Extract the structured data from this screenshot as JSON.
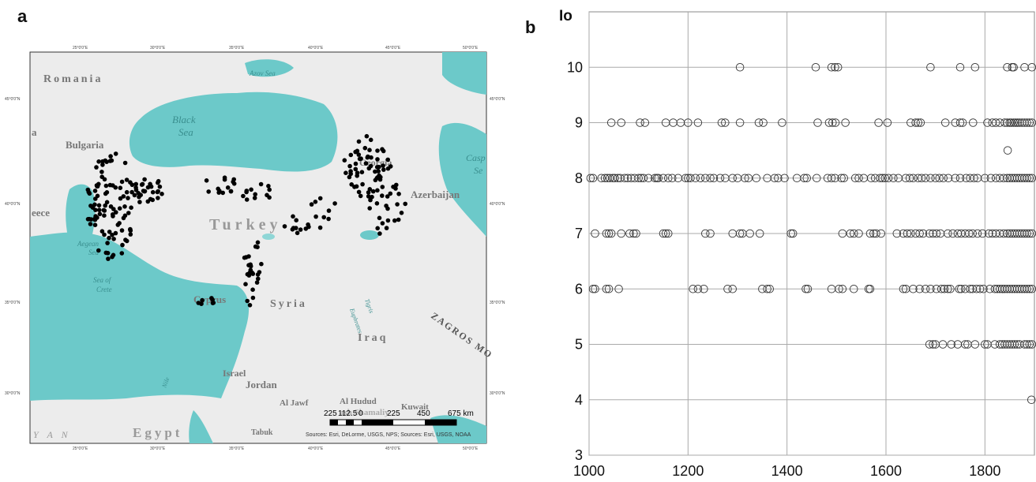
{
  "panels": {
    "a_letter": "a",
    "b_letter": "b"
  },
  "map": {
    "labels": {
      "romania": "Romania",
      "azov_sea": "Azov Sea",
      "black_sea_1": "Black",
      "black_sea_2": "Sea",
      "bulgaria": "Bulgaria",
      "greece_partial": "eece",
      "a_partial": "a",
      "turkey": "Turkey",
      "aegean_sea_1": "Aegean",
      "aegean_sea_2": "Sea",
      "sea_of_crete_1": "Sea of",
      "sea_of_crete_2": "Crete",
      "cyprus": "Cyprus",
      "syria": "Syria",
      "iraq": "Iraq",
      "tigris": "Tigris",
      "euphrates": "Euphrates",
      "zagros": "ZAGROS MO",
      "georgia": "Georgia",
      "azerbaijan": "Azerbaijan",
      "caspian_1": "Casp",
      "caspian_2": "Se",
      "israel": "Israel",
      "jordan": "Jordan",
      "al_jawf": "Al Jawf",
      "al_hudud": "Al Hudud",
      "ash_shamaliy": "ash Shamaliy",
      "kuwait": "Kuwait",
      "egypt": "Egypt",
      "tabuk": "Tabuk",
      "y_a_n": "Y A N",
      "nile": "Nile"
    },
    "lon_ticks": [
      "25°0'0\"E",
      "30°0'0\"E",
      "35°0'0\"E",
      "40°0'0\"E",
      "45°0'0\"E",
      "50°0'0\"E"
    ],
    "lat_ticks": [
      "45°0'0\"N",
      "40°0'0\"N",
      "35°0'0\"N",
      "30°0'0\"N"
    ],
    "scale_labels": [
      "225",
      "112.5",
      "0",
      "225",
      "450",
      "675 km"
    ],
    "sources": "Sources: Esri, DeLorme, USGS, NPS; Sources: Esri, USGS, NOAA",
    "colors": {
      "sea": "#6cc9c9",
      "land": "#eeeeee",
      "dot": "#000000"
    }
  },
  "chart_data": {
    "type": "scatter",
    "title": "",
    "xlabel": "",
    "ylabel": "Io",
    "xlim": [
      1000,
      1900
    ],
    "ylim": [
      3,
      11
    ],
    "xticks": [
      1000,
      1200,
      1400,
      1600,
      1800
    ],
    "yticks": [
      3,
      4,
      5,
      6,
      7,
      8,
      9,
      10
    ],
    "grid": true,
    "marker": "open-circle",
    "series": [
      {
        "points": [
          [
            1305,
            10
          ],
          [
            1458,
            10
          ],
          [
            1490,
            10
          ],
          [
            1497,
            10
          ],
          [
            1503,
            10
          ],
          [
            1690,
            10
          ],
          [
            1750,
            10
          ],
          [
            1780,
            10
          ],
          [
            1845,
            10
          ],
          [
            1855,
            10
          ],
          [
            1858,
            10
          ],
          [
            1880,
            10
          ],
          [
            1895,
            10
          ],
          [
            1045,
            9
          ],
          [
            1065,
            9
          ],
          [
            1103,
            9
          ],
          [
            1113,
            9
          ],
          [
            1155,
            9
          ],
          [
            1170,
            9
          ],
          [
            1185,
            9
          ],
          [
            1200,
            9
          ],
          [
            1220,
            9
          ],
          [
            1268,
            9
          ],
          [
            1275,
            9
          ],
          [
            1305,
            9
          ],
          [
            1343,
            9
          ],
          [
            1352,
            9
          ],
          [
            1390,
            9
          ],
          [
            1462,
            9
          ],
          [
            1485,
            9
          ],
          [
            1492,
            9
          ],
          [
            1498,
            9
          ],
          [
            1518,
            9
          ],
          [
            1585,
            9
          ],
          [
            1603,
            9
          ],
          [
            1650,
            9
          ],
          [
            1660,
            9
          ],
          [
            1665,
            9
          ],
          [
            1670,
            9
          ],
          [
            1720,
            9
          ],
          [
            1740,
            9
          ],
          [
            1750,
            9
          ],
          [
            1755,
            9
          ],
          [
            1776,
            9
          ],
          [
            1805,
            9
          ],
          [
            1815,
            9
          ],
          [
            1822,
            9
          ],
          [
            1830,
            9
          ],
          [
            1840,
            9
          ],
          [
            1845,
            9
          ],
          [
            1850,
            9
          ],
          [
            1853,
            9
          ],
          [
            1858,
            9
          ],
          [
            1862,
            9
          ],
          [
            1866,
            9
          ],
          [
            1870,
            9
          ],
          [
            1875,
            9
          ],
          [
            1880,
            9
          ],
          [
            1885,
            9
          ],
          [
            1890,
            9
          ],
          [
            1895,
            9
          ],
          [
            1846,
            8.5
          ],
          [
            1003,
            8
          ],
          [
            1008,
            8
          ],
          [
            1025,
            8
          ],
          [
            1032,
            8
          ],
          [
            1037,
            8
          ],
          [
            1042,
            8
          ],
          [
            1048,
            8
          ],
          [
            1052,
            8
          ],
          [
            1058,
            8
          ],
          [
            1063,
            8
          ],
          [
            1072,
            8
          ],
          [
            1078,
            8
          ],
          [
            1085,
            8
          ],
          [
            1092,
            8
          ],
          [
            1100,
            8
          ],
          [
            1105,
            8
          ],
          [
            1110,
            8
          ],
          [
            1120,
            8
          ],
          [
            1133,
            8
          ],
          [
            1137,
            8
          ],
          [
            1140,
            8
          ],
          [
            1150,
            8
          ],
          [
            1160,
            8
          ],
          [
            1168,
            8
          ],
          [
            1180,
            8
          ],
          [
            1195,
            8
          ],
          [
            1200,
            8
          ],
          [
            1205,
            8
          ],
          [
            1215,
            8
          ],
          [
            1225,
            8
          ],
          [
            1235,
            8
          ],
          [
            1245,
            8
          ],
          [
            1252,
            8
          ],
          [
            1265,
            8
          ],
          [
            1275,
            8
          ],
          [
            1290,
            8
          ],
          [
            1300,
            8
          ],
          [
            1315,
            8
          ],
          [
            1322,
            8
          ],
          [
            1338,
            8
          ],
          [
            1360,
            8
          ],
          [
            1375,
            8
          ],
          [
            1382,
            8
          ],
          [
            1395,
            8
          ],
          [
            1420,
            8
          ],
          [
            1435,
            8
          ],
          [
            1440,
            8
          ],
          [
            1460,
            8
          ],
          [
            1482,
            8
          ],
          [
            1490,
            8
          ],
          [
            1497,
            8
          ],
          [
            1510,
            8
          ],
          [
            1515,
            8
          ],
          [
            1538,
            8
          ],
          [
            1545,
            8
          ],
          [
            1555,
            8
          ],
          [
            1570,
            8
          ],
          [
            1578,
            8
          ],
          [
            1588,
            8
          ],
          [
            1593,
            8
          ],
          [
            1598,
            8
          ],
          [
            1605,
            8
          ],
          [
            1615,
            8
          ],
          [
            1625,
            8
          ],
          [
            1640,
            8
          ],
          [
            1648,
            8
          ],
          [
            1655,
            8
          ],
          [
            1665,
            8
          ],
          [
            1672,
            8
          ],
          [
            1680,
            8
          ],
          [
            1690,
            8
          ],
          [
            1700,
            8
          ],
          [
            1708,
            8
          ],
          [
            1716,
            8
          ],
          [
            1726,
            8
          ],
          [
            1740,
            8
          ],
          [
            1750,
            8
          ],
          [
            1762,
            8
          ],
          [
            1770,
            8
          ],
          [
            1778,
            8
          ],
          [
            1785,
            8
          ],
          [
            1800,
            8
          ],
          [
            1812,
            8
          ],
          [
            1822,
            8
          ],
          [
            1830,
            8
          ],
          [
            1838,
            8
          ],
          [
            1845,
            8
          ],
          [
            1850,
            8
          ],
          [
            1855,
            8
          ],
          [
            1860,
            8
          ],
          [
            1865,
            8
          ],
          [
            1870,
            8
          ],
          [
            1875,
            8
          ],
          [
            1880,
            8
          ],
          [
            1885,
            8
          ],
          [
            1890,
            8
          ],
          [
            1895,
            8
          ],
          [
            1012,
            7
          ],
          [
            1035,
            7
          ],
          [
            1040,
            7
          ],
          [
            1045,
            7
          ],
          [
            1065,
            7
          ],
          [
            1082,
            7
          ],
          [
            1090,
            7
          ],
          [
            1095,
            7
          ],
          [
            1150,
            7
          ],
          [
            1155,
            7
          ],
          [
            1160,
            7
          ],
          [
            1235,
            7
          ],
          [
            1245,
            7
          ],
          [
            1290,
            7
          ],
          [
            1305,
            7
          ],
          [
            1310,
            7
          ],
          [
            1325,
            7
          ],
          [
            1345,
            7
          ],
          [
            1408,
            7
          ],
          [
            1412,
            7
          ],
          [
            1512,
            7
          ],
          [
            1528,
            7
          ],
          [
            1535,
            7
          ],
          [
            1545,
            7
          ],
          [
            1568,
            7
          ],
          [
            1575,
            7
          ],
          [
            1580,
            7
          ],
          [
            1590,
            7
          ],
          [
            1622,
            7
          ],
          [
            1635,
            7
          ],
          [
            1643,
            7
          ],
          [
            1650,
            7
          ],
          [
            1660,
            7
          ],
          [
            1668,
            7
          ],
          [
            1675,
            7
          ],
          [
            1688,
            7
          ],
          [
            1695,
            7
          ],
          [
            1702,
            7
          ],
          [
            1710,
            7
          ],
          [
            1725,
            7
          ],
          [
            1735,
            7
          ],
          [
            1745,
            7
          ],
          [
            1752,
            7
          ],
          [
            1760,
            7
          ],
          [
            1768,
            7
          ],
          [
            1775,
            7
          ],
          [
            1785,
            7
          ],
          [
            1795,
            7
          ],
          [
            1808,
            7
          ],
          [
            1815,
            7
          ],
          [
            1822,
            7
          ],
          [
            1830,
            7
          ],
          [
            1838,
            7
          ],
          [
            1845,
            7
          ],
          [
            1850,
            7
          ],
          [
            1855,
            7
          ],
          [
            1860,
            7
          ],
          [
            1865,
            7
          ],
          [
            1870,
            7
          ],
          [
            1875,
            7
          ],
          [
            1880,
            7
          ],
          [
            1885,
            7
          ],
          [
            1890,
            7
          ],
          [
            1895,
            7
          ],
          [
            1008,
            6
          ],
          [
            1012,
            6
          ],
          [
            1035,
            6
          ],
          [
            1040,
            6
          ],
          [
            1060,
            6
          ],
          [
            1210,
            6
          ],
          [
            1220,
            6
          ],
          [
            1232,
            6
          ],
          [
            1280,
            6
          ],
          [
            1290,
            6
          ],
          [
            1350,
            6
          ],
          [
            1360,
            6
          ],
          [
            1365,
            6
          ],
          [
            1438,
            6
          ],
          [
            1442,
            6
          ],
          [
            1490,
            6
          ],
          [
            1505,
            6
          ],
          [
            1512,
            6
          ],
          [
            1535,
            6
          ],
          [
            1565,
            6
          ],
          [
            1568,
            6
          ],
          [
            1635,
            6
          ],
          [
            1640,
            6
          ],
          [
            1655,
            6
          ],
          [
            1668,
            6
          ],
          [
            1680,
            6
          ],
          [
            1690,
            6
          ],
          [
            1702,
            6
          ],
          [
            1712,
            6
          ],
          [
            1718,
            6
          ],
          [
            1725,
            6
          ],
          [
            1730,
            6
          ],
          [
            1748,
            6
          ],
          [
            1752,
            6
          ],
          [
            1760,
            6
          ],
          [
            1770,
            6
          ],
          [
            1775,
            6
          ],
          [
            1783,
            6
          ],
          [
            1790,
            6
          ],
          [
            1797,
            6
          ],
          [
            1810,
            6
          ],
          [
            1820,
            6
          ],
          [
            1825,
            6
          ],
          [
            1830,
            6
          ],
          [
            1835,
            6
          ],
          [
            1840,
            6
          ],
          [
            1845,
            6
          ],
          [
            1850,
            6
          ],
          [
            1855,
            6
          ],
          [
            1860,
            6
          ],
          [
            1865,
            6
          ],
          [
            1870,
            6
          ],
          [
            1875,
            6
          ],
          [
            1880,
            6
          ],
          [
            1885,
            6
          ],
          [
            1890,
            6
          ],
          [
            1895,
            6
          ],
          [
            1688,
            5
          ],
          [
            1695,
            5
          ],
          [
            1700,
            5
          ],
          [
            1715,
            5
          ],
          [
            1732,
            5
          ],
          [
            1745,
            5
          ],
          [
            1760,
            5
          ],
          [
            1765,
            5
          ],
          [
            1780,
            5
          ],
          [
            1800,
            5
          ],
          [
            1805,
            5
          ],
          [
            1820,
            5
          ],
          [
            1830,
            5
          ],
          [
            1835,
            5
          ],
          [
            1840,
            5
          ],
          [
            1845,
            5
          ],
          [
            1850,
            5
          ],
          [
            1855,
            5
          ],
          [
            1860,
            5
          ],
          [
            1865,
            5
          ],
          [
            1870,
            5
          ],
          [
            1880,
            5
          ],
          [
            1885,
            5
          ],
          [
            1890,
            5
          ],
          [
            1895,
            5
          ],
          [
            1894,
            4
          ]
        ]
      }
    ]
  }
}
